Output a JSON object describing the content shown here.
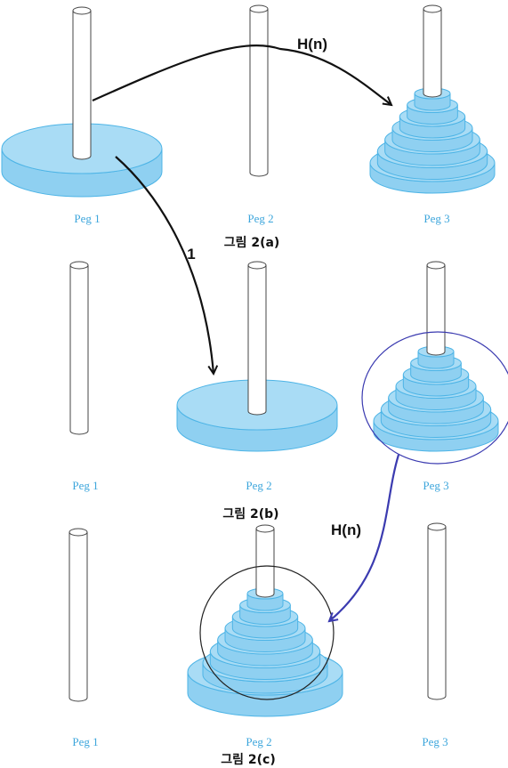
{
  "figures": [
    {
      "caption": "그림 2(a)",
      "peg_labels": [
        "Peg 1",
        "Peg 2",
        "Peg 3"
      ],
      "pegs": [
        {
          "disks": "large-single"
        },
        {
          "disks": "none"
        },
        {
          "disks": "stack"
        }
      ],
      "arrows": [
        {
          "label": "H(n)",
          "from": "Peg 1",
          "to": "Peg 3"
        },
        {
          "label": "1",
          "from": "Peg 1",
          "to": "Peg 2 (figure b)"
        }
      ]
    },
    {
      "caption": "그림 2(b)",
      "peg_labels": [
        "Peg 1",
        "Peg 2",
        "Peg 3"
      ],
      "pegs": [
        {
          "disks": "none"
        },
        {
          "disks": "large-single"
        },
        {
          "disks": "stack",
          "circled": true
        }
      ],
      "arrows": [
        {
          "label": "H(n)",
          "from": "Peg 3",
          "to": "Peg 2 (figure c)"
        }
      ]
    },
    {
      "caption": "그림 2(c)",
      "peg_labels": [
        "Peg 1",
        "Peg 2",
        "Peg 3"
      ],
      "pegs": [
        {
          "disks": "none"
        },
        {
          "disks": "large-single + stack",
          "circled": true
        },
        {
          "disks": "none"
        }
      ]
    }
  ],
  "colors": {
    "disk_fill": "#a9dcf5",
    "disk_side": "#8fd0f1",
    "disk_stroke": "#4db4e6",
    "peg_stroke": "#444444",
    "arrow_black": "#111111",
    "arrow_blue": "#3b3bb0",
    "circle_blue": "#3a3ab0"
  },
  "stack_disk_count": 7
}
